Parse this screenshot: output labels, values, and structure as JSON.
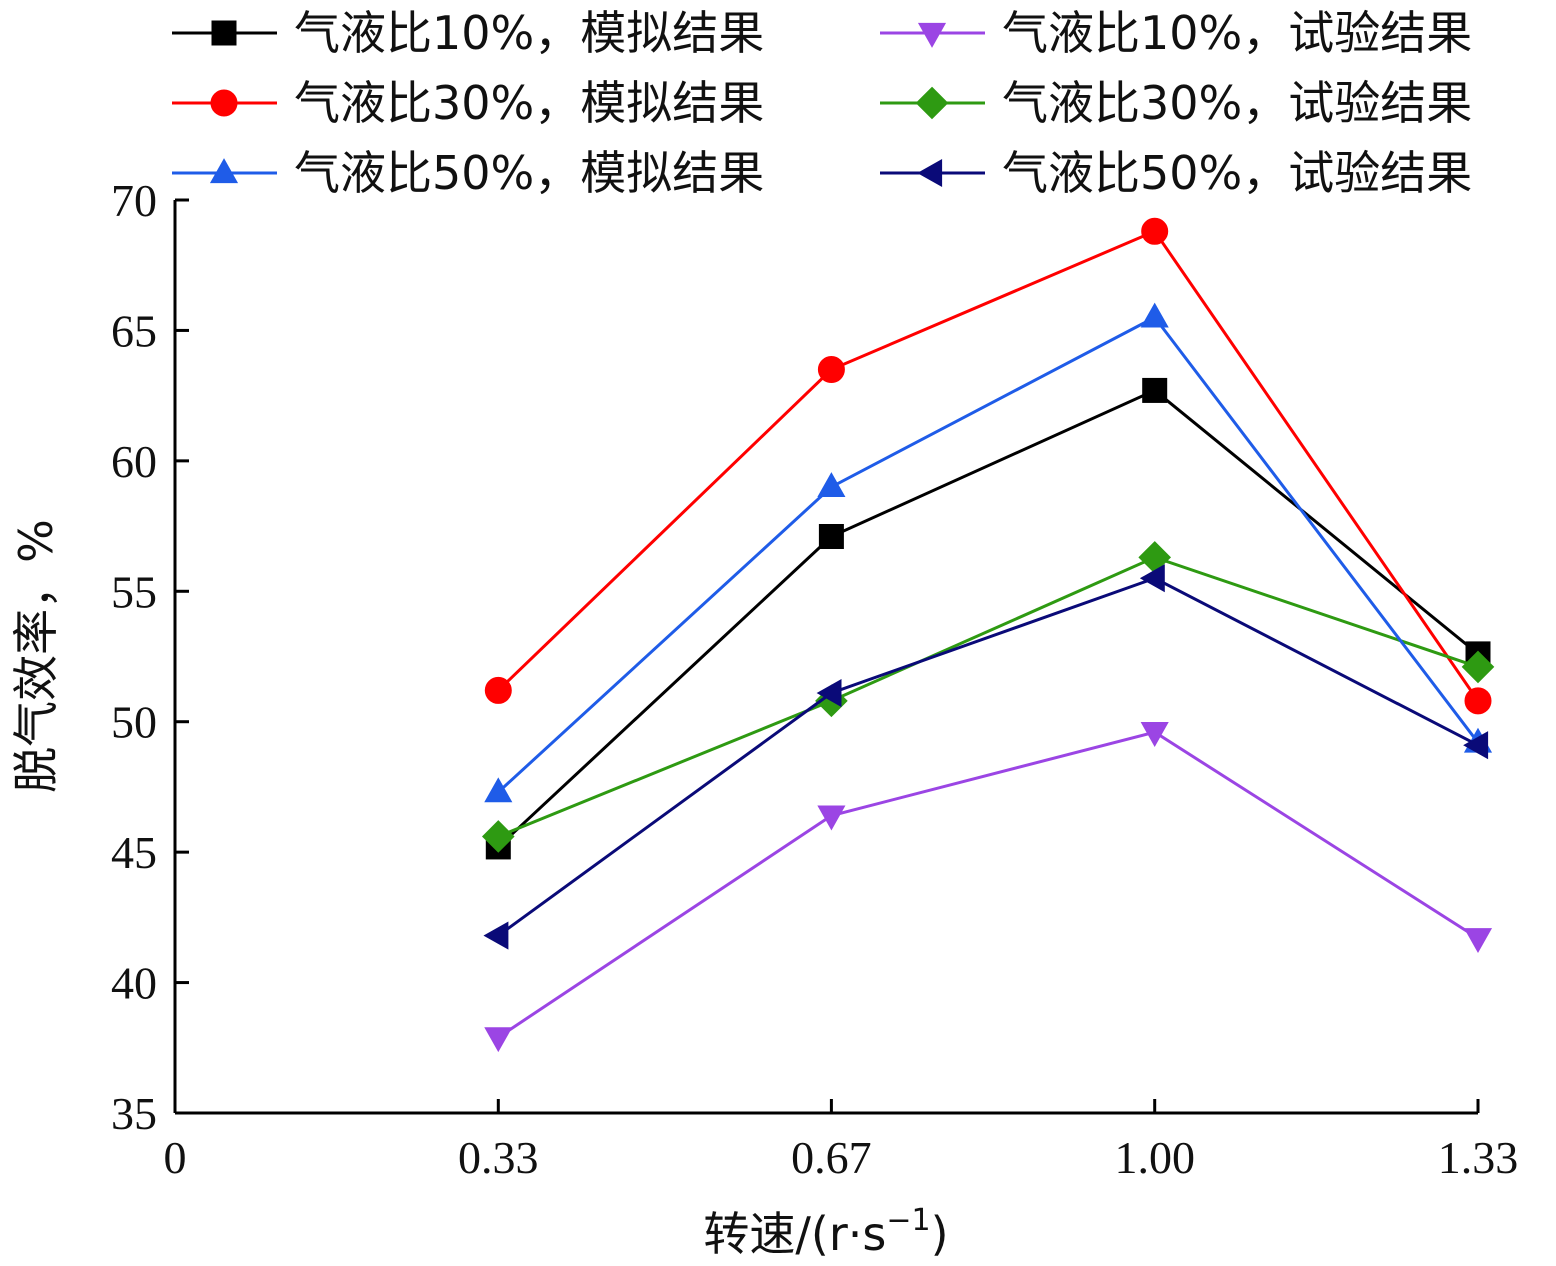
{
  "chart_data": {
    "type": "line",
    "categories": [
      "0.33",
      "0.67",
      "1.00",
      "1.33"
    ],
    "x": [
      0.33,
      0.67,
      1.0,
      1.33
    ],
    "xlabel": "转速/(r·s",
    "xlabel_sup": "−1",
    "xlabel_end": ")",
    "ylabel": "脱气效率，%",
    "xlim": [
      0,
      1.33
    ],
    "ylim": [
      35,
      70
    ],
    "x_ticks": [
      "0",
      "0.33",
      "0.67",
      "1.00",
      "1.33"
    ],
    "y_ticks": [
      35,
      40,
      45,
      50,
      55,
      60,
      65,
      70
    ],
    "grid": false,
    "legend_position": "top",
    "series": [
      {
        "name": "气液比10%，模拟结果",
        "color": "#000000",
        "marker": "square",
        "values": [
          45.2,
          57.1,
          62.7,
          52.6
        ]
      },
      {
        "name": "气液比10%，试验结果",
        "color": "#9b45e4",
        "marker": "triangle-down",
        "values": [
          37.9,
          46.4,
          49.6,
          41.7
        ]
      },
      {
        "name": "气液比30%，模拟结果",
        "color": "#ff0000",
        "marker": "circle",
        "values": [
          51.2,
          63.5,
          68.8,
          50.8
        ]
      },
      {
        "name": "气液比30%，试验结果",
        "color": "#2e9a12",
        "marker": "diamond",
        "values": [
          45.6,
          50.8,
          56.3,
          52.1
        ]
      },
      {
        "name": "气液比50%，模拟结果",
        "color": "#1f5ce8",
        "marker": "triangle-up",
        "values": [
          47.3,
          59.0,
          65.5,
          49.2
        ]
      },
      {
        "name": "气液比50%，试验结果",
        "color": "#0a0a78",
        "marker": "triangle-left",
        "values": [
          41.8,
          51.1,
          55.5,
          49.1
        ]
      }
    ]
  }
}
